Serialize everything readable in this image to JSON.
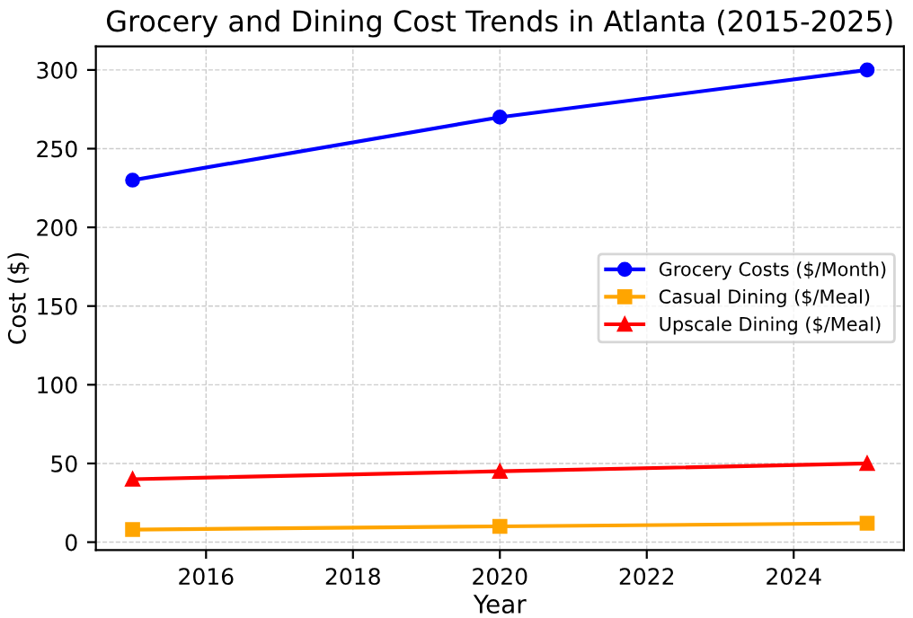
{
  "chart_data": {
    "type": "line",
    "title": "Grocery and Dining Cost Trends in Atlanta (2015-2025)",
    "xlabel": "Year",
    "ylabel": "Cost ($)",
    "x": [
      2015,
      2020,
      2025
    ],
    "series": [
      {
        "name": "Grocery Costs ($/Month)",
        "color": "#0000ff",
        "values": [
          230,
          270,
          300
        ],
        "marker": "circle"
      },
      {
        "name": "Casual Dining ($/Meal)",
        "color": "#ffa500",
        "values": [
          8,
          10,
          12
        ],
        "marker": "square"
      },
      {
        "name": "Upscale Dining ($/Meal)",
        "color": "#ff0000",
        "values": [
          40,
          45,
          50
        ],
        "marker": "triangle"
      }
    ],
    "xlim": [
      2014.5,
      2025.5
    ],
    "xticks": [
      2016,
      2018,
      2020,
      2022,
      2024
    ],
    "ylim": [
      -5,
      315
    ],
    "yticks": [
      0,
      50,
      100,
      150,
      200,
      250,
      300
    ],
    "grid": true,
    "legend": "right",
    "line_style": "solid"
  }
}
